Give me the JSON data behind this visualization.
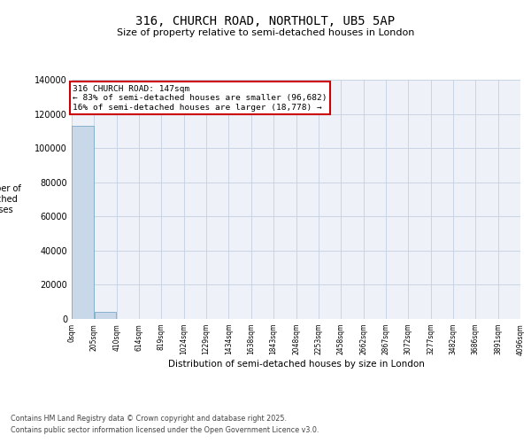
{
  "title": "316, CHURCH ROAD, NORTHOLT, UB5 5AP",
  "subtitle": "Size of property relative to semi-detached houses in London",
  "xlabel": "Distribution of semi-detached houses by size in London",
  "ylabel": "Number of\ndetached\nhouses",
  "annotation_text_line1": "316 CHURCH ROAD: 147sqm",
  "annotation_text_line2": "← 83% of semi-detached houses are smaller (96,682)",
  "annotation_text_line3": "16% of semi-detached houses are larger (18,778) →",
  "bar_color": "#c8d8e8",
  "bar_edge_color": "#7aaac8",
  "annotation_box_color": "#ffffff",
  "annotation_box_edge": "#cc0000",
  "grid_color": "#c8d4e4",
  "bg_color": "#eef2f8",
  "footer_line1": "Contains HM Land Registry data © Crown copyright and database right 2025.",
  "footer_line2": "Contains public sector information licensed under the Open Government Licence v3.0.",
  "bin_edges": [
    0,
    205,
    410,
    614,
    819,
    1024,
    1229,
    1434,
    1638,
    1843,
    2048,
    2253,
    2458,
    2662,
    2867,
    3072,
    3277,
    3482,
    3686,
    3891,
    4096
  ],
  "bin_labels": [
    "0sqm",
    "205sqm",
    "410sqm",
    "614sqm",
    "819sqm",
    "1024sqm",
    "1229sqm",
    "1434sqm",
    "1638sqm",
    "1843sqm",
    "2048sqm",
    "2253sqm",
    "2458sqm",
    "2662sqm",
    "2867sqm",
    "3072sqm",
    "3277sqm",
    "3482sqm",
    "3686sqm",
    "3891sqm",
    "4096sqm"
  ],
  "bar_heights": [
    113000,
    4000,
    0,
    0,
    0,
    0,
    0,
    0,
    0,
    0,
    0,
    0,
    0,
    0,
    0,
    0,
    0,
    0,
    0,
    0
  ],
  "ylim": [
    0,
    140000
  ],
  "yticks": [
    0,
    20000,
    40000,
    60000,
    80000,
    100000,
    120000,
    140000
  ]
}
